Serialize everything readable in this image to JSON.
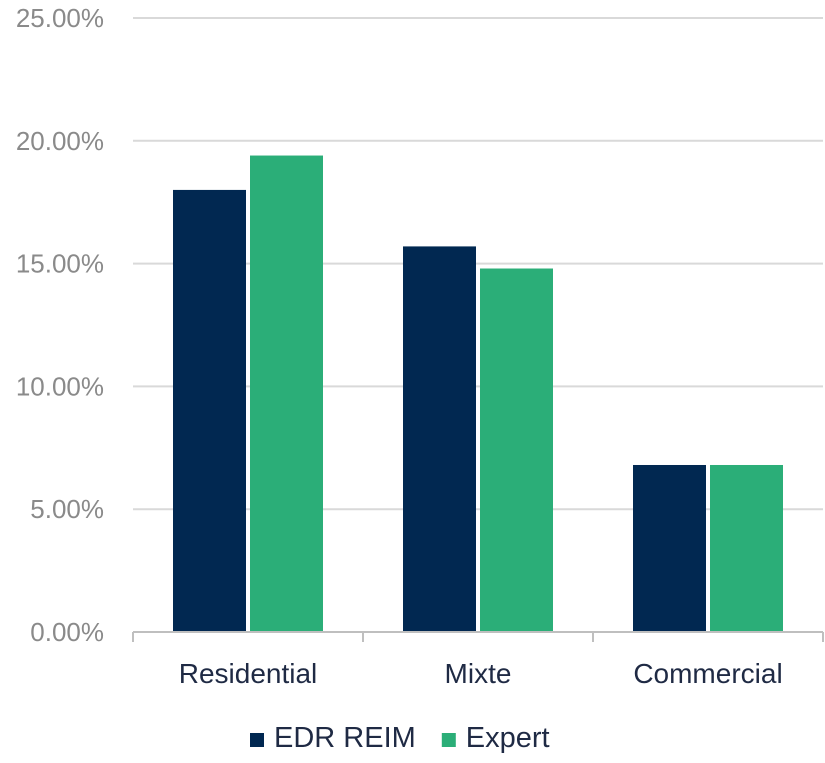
{
  "chart_data": {
    "type": "bar",
    "categories": [
      "Residential",
      "Mixte",
      "Commercial"
    ],
    "series": [
      {
        "name": "EDR REIM",
        "color": "#012851",
        "values": [
          18.0,
          15.7,
          6.8
        ]
      },
      {
        "name": "Expert",
        "color": "#2BAE78",
        "values": [
          19.4,
          14.8,
          6.8
        ]
      }
    ],
    "ylim": [
      0,
      25
    ],
    "yticks": [
      "0.00%",
      "5.00%",
      "10.00%",
      "15.00%",
      "20.00%",
      "25.00%"
    ],
    "ytick_values": [
      0,
      5,
      10,
      15,
      20,
      25
    ],
    "grid": true,
    "legend_position": "bottom"
  }
}
